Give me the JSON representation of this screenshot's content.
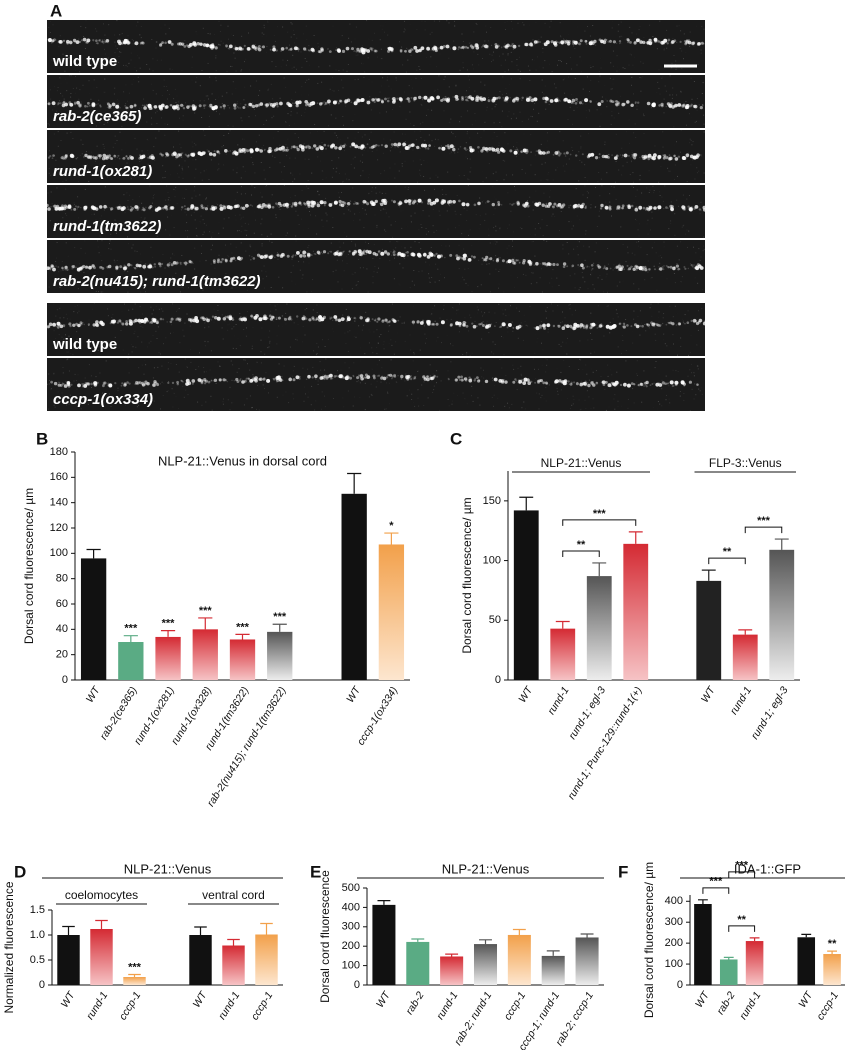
{
  "microscopy": {
    "panel": "A",
    "labels": [
      "wild type",
      "rab-2(ce365)",
      "rund-1(ox281)",
      "rund-1(tm3622)",
      "rab-2(nu415); rund-1(tm3622)",
      "wild type",
      "cccp-1(ox334)"
    ]
  },
  "chart_data": [
    {
      "type": "bar",
      "panel": "B",
      "title": "NLP-21::Venus in dorsal cord",
      "ylabel": "Dorsal cord fluorescence/ µm",
      "categories": [
        "WT",
        "rab-2(ce365)",
        "rund-1(ox281)",
        "rund-1(ox328)",
        "rund-1(tm3622)",
        "rab-2(nu415); rund-1(tm3622)",
        null,
        "WT",
        "cccp-1(ox334)"
      ],
      "values": [
        96,
        30,
        34,
        40,
        32,
        38,
        null,
        147,
        107
      ],
      "errors": [
        7,
        5,
        5,
        9,
        4,
        6,
        null,
        16,
        9
      ],
      "stars": [
        null,
        "***",
        "***",
        "***",
        "***",
        "***",
        null,
        null,
        "*"
      ],
      "colors": [
        [
          "#111111",
          "#111111"
        ],
        [
          "#5aab84",
          "#5aab84"
        ],
        [
          "#d42a33",
          "#f6c3c5"
        ],
        [
          "#d42a33",
          "#f6c3c5"
        ],
        [
          "#d42a33",
          "#f6c3c5"
        ],
        [
          "#555555",
          "#ededed"
        ],
        null,
        [
          "#111111",
          "#111111"
        ],
        [
          "#f2a04a",
          "#fde6cf"
        ]
      ],
      "ylim": [
        0,
        180
      ],
      "yticks": [
        0,
        20,
        40,
        60,
        80,
        100,
        120,
        140,
        160,
        180
      ]
    },
    {
      "type": "bar",
      "panel": "C",
      "ylabel": "Dorsal cord fluorescence/ µm",
      "group_labels": [
        "NLP-21::Venus",
        "FLP-3::Venus"
      ],
      "categories": [
        "WT",
        "rund-1",
        "rund-1; egl-3",
        "rund-1; Punc-129::rund-1(+)",
        null,
        "WT",
        "rund-1",
        "rund-1; egl-3"
      ],
      "values": [
        142,
        43,
        87,
        114,
        null,
        83,
        38,
        109
      ],
      "errors": [
        11,
        6,
        11,
        10,
        null,
        9,
        4,
        9
      ],
      "colors": [
        [
          "#111111",
          "#111111"
        ],
        [
          "#d42a33",
          "#f6c3c5"
        ],
        [
          "#555555",
          "#ededed"
        ],
        [
          "#d42a33",
          "#f6c3c5"
        ],
        null,
        [
          "#222222",
          "#222222"
        ],
        [
          "#d42a33",
          "#f6c3c5"
        ],
        [
          "#555555",
          "#ededed"
        ]
      ],
      "brackets": [
        {
          "from": 1,
          "to": 2,
          "label": "**"
        },
        {
          "from": 1,
          "to": 3,
          "label": "***"
        },
        {
          "from": 5,
          "to": 6,
          "label": "**"
        },
        {
          "from": 6,
          "to": 7,
          "label": "***"
        }
      ],
      "ylim": [
        0,
        175
      ],
      "yticks": [
        0,
        50,
        100,
        150
      ]
    },
    {
      "type": "bar",
      "panel": "D",
      "title": "NLP-21::Venus",
      "ylabel": "Normalized fluorescence",
      "group_labels": [
        "coelomocytes",
        "ventral cord"
      ],
      "categories": [
        "WT",
        "rund-1",
        "cccp-1",
        null,
        "WT",
        "rund-1",
        "cccp-1"
      ],
      "values": [
        1.0,
        1.12,
        0.16,
        null,
        1.0,
        0.79,
        1.01
      ],
      "errors": [
        0.17,
        0.17,
        0.05,
        null,
        0.16,
        0.12,
        0.22
      ],
      "stars": [
        null,
        null,
        "***",
        null,
        null,
        null,
        null
      ],
      "colors": [
        [
          "#111111",
          "#111111"
        ],
        [
          "#d42a33",
          "#f6c3c5"
        ],
        [
          "#f2a04a",
          "#fde6cf"
        ],
        null,
        [
          "#111111",
          "#111111"
        ],
        [
          "#d42a33",
          "#f6c3c5"
        ],
        [
          "#f2a04a",
          "#fde6cf"
        ]
      ],
      "ylim": [
        0,
        1.5
      ],
      "yticks": [
        0,
        0.5,
        {
          "value": 1,
          "label": "1.0"
        },
        1.5
      ]
    },
    {
      "type": "bar",
      "panel": "E",
      "title": "NLP-21::Venus",
      "ylabel": "Dorsal cord fluorescence",
      "categories": [
        "WT",
        "rab-2",
        "rund-1",
        "rab-2; rund-1",
        "cccp-1",
        "cccp-1; rund-1",
        "rab-2; cccp-1"
      ],
      "values": [
        413,
        222,
        147,
        211,
        258,
        150,
        245
      ],
      "errors": [
        22,
        15,
        12,
        22,
        28,
        26,
        18
      ],
      "colors": [
        [
          "#111111",
          "#111111"
        ],
        [
          "#5aab84",
          "#5aab84"
        ],
        [
          "#d42a33",
          "#f6c3c5"
        ],
        [
          "#555555",
          "#ededed"
        ],
        [
          "#f2a04a",
          "#fde6cf"
        ],
        [
          "#555555",
          "#ededed"
        ],
        [
          "#555555",
          "#ededed"
        ]
      ],
      "ylim": [
        0,
        500
      ],
      "yticks": [
        0,
        100,
        200,
        300,
        400,
        500
      ]
    },
    {
      "type": "bar",
      "panel": "F",
      "title": "IDA-1::GFP",
      "ylabel": "Dorsal cord fluorescence/ µm",
      "categories": [
        "WT",
        "rab-2",
        "rund-1",
        null,
        "WT",
        "cccp-1"
      ],
      "values": [
        387,
        122,
        210,
        null,
        228,
        148
      ],
      "errors": [
        20,
        10,
        15,
        null,
        14,
        14
      ],
      "stars": [
        null,
        null,
        null,
        null,
        null,
        "**"
      ],
      "colors": [
        [
          "#111111",
          "#111111"
        ],
        [
          "#5aab84",
          "#5aab84"
        ],
        [
          "#d42a33",
          "#f6c3c5"
        ],
        null,
        [
          "#111111",
          "#111111"
        ],
        [
          "#f2a04a",
          "#fde6cf"
        ]
      ],
      "brackets": [
        {
          "from": 1,
          "to": 2,
          "label": "**"
        },
        {
          "from": 0,
          "to": 1,
          "label": "***"
        },
        {
          "from": 1,
          "to": 2,
          "label": "***"
        }
      ],
      "ylim": [
        0,
        430
      ],
      "yticks": [
        0,
        100,
        200,
        300,
        400
      ]
    }
  ]
}
